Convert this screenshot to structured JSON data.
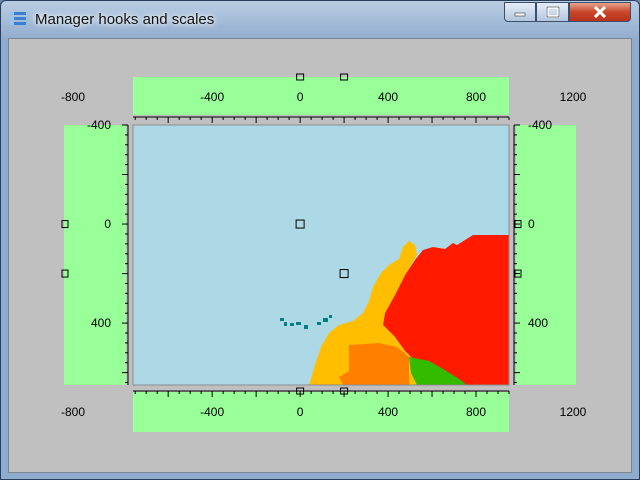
{
  "window": {
    "title": "Manager hooks and scales",
    "icon": "app-list-icon",
    "controls": [
      "minimize-icon",
      "maximize-icon",
      "close-icon"
    ]
  },
  "colors": {
    "client_bg": "#c0c0c0",
    "scale_bg": "#99ff99",
    "sea": "#add8e6",
    "region_red": "#ff1a00",
    "region_amber": "#ffbf00",
    "region_orange": "#ff8000",
    "region_green": "#33bb00",
    "islands": "#008080"
  },
  "chart_data": {
    "type": "map",
    "x_range": [
      -760,
      950
    ],
    "y_range": [
      -400,
      650
    ],
    "top_scale_ticks": [
      "-400",
      "0",
      "400",
      "800"
    ],
    "bottom_scale_ticks": [
      "-400",
      "0",
      "400",
      "800"
    ],
    "outer_x_labels_top": [
      "-800",
      "1200"
    ],
    "outer_x_labels_bottom": [
      "-800",
      "1200"
    ],
    "left_scale_ticks": [
      "-400",
      "0",
      "400"
    ],
    "right_scale_ticks": [
      "-400",
      "0",
      "400"
    ],
    "markers": [
      {
        "x": 0,
        "y": 0
      },
      {
        "x": 200,
        "y": 200
      }
    ]
  }
}
